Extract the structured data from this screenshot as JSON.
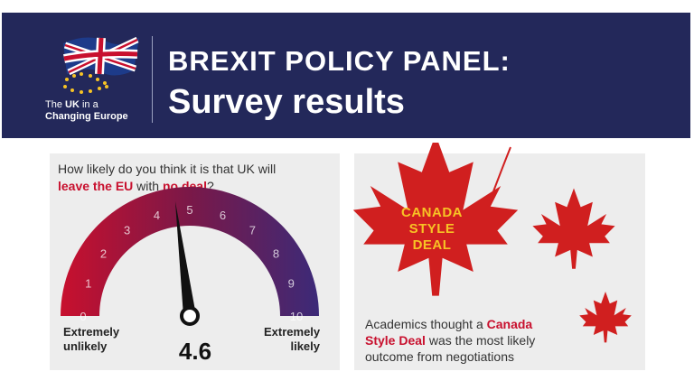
{
  "header": {
    "logo_text_pre": "The ",
    "logo_text_bold": "UK",
    "logo_text_post": " in a",
    "logo_text_line2": "Changing Europe",
    "title_line1": "BREXIT POLICY PANEL:",
    "title_line2": "Survey results"
  },
  "left_panel": {
    "question_part1": "How likely do you think it is that UK will",
    "question_red1": "leave the EU",
    "question_part2": " with ",
    "question_red2": "no deal",
    "question_part3": "?",
    "scale": [
      "0",
      "1",
      "2",
      "3",
      "4",
      "5",
      "6",
      "7",
      "8",
      "9",
      "10"
    ],
    "low_label_line1": "Extremely",
    "low_label_line2": "unlikely",
    "high_label_line1": "Extremely",
    "high_label_line2": "likely",
    "score": "4.6",
    "score_value": 4.6
  },
  "right_panel": {
    "leaf_label_line1": "CANADA",
    "leaf_label_line2": "STYLE",
    "leaf_label_line3": "DEAL",
    "outcome_part1": "Academics thought a ",
    "outcome_red1": "Canada",
    "outcome_red2": "Style Deal",
    "outcome_part2": " was the most likely",
    "outcome_part3": "outcome from negotiations"
  },
  "colors": {
    "header_bg": "#23285a",
    "accent_red": "#c8102e",
    "label_yellow": "#f7c325",
    "gauge_start": "#c8102e",
    "gauge_end": "#3c2a78",
    "panel_bg": "#ededed"
  }
}
